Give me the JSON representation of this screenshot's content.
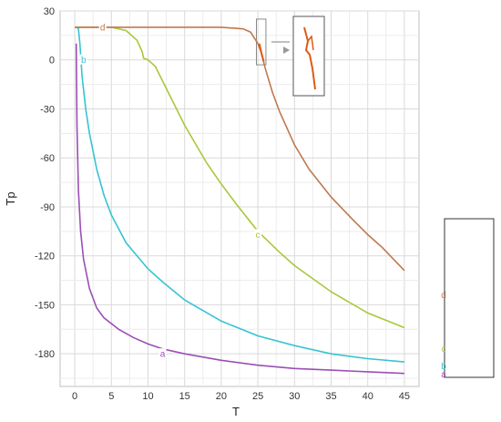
{
  "chart_data": {
    "type": "line",
    "title": "",
    "xlabel": "T",
    "ylabel": "Tp",
    "xlim": [
      -2,
      47
    ],
    "ylim": [
      -200,
      30
    ],
    "xticks": [
      0,
      5,
      10,
      15,
      20,
      25,
      30,
      35,
      40,
      45
    ],
    "yticks": [
      30,
      0,
      -30,
      -60,
      -90,
      -120,
      -150,
      -180
    ],
    "grid": true,
    "series": [
      {
        "name": "a",
        "color": "#9b4fb5",
        "label_at": [
          12,
          -180
        ],
        "points": [
          [
            0.2,
            10
          ],
          [
            0.3,
            -40
          ],
          [
            0.5,
            -80
          ],
          [
            0.8,
            -105
          ],
          [
            1.2,
            -122
          ],
          [
            2,
            -140
          ],
          [
            3,
            -152
          ],
          [
            4,
            -158
          ],
          [
            6,
            -165
          ],
          [
            8,
            -170
          ],
          [
            10,
            -174
          ],
          [
            12,
            -177
          ],
          [
            15,
            -180
          ],
          [
            20,
            -184
          ],
          [
            25,
            -187
          ],
          [
            30,
            -189
          ],
          [
            35,
            -190
          ],
          [
            40,
            -191
          ],
          [
            45,
            -192
          ]
        ]
      },
      {
        "name": "b",
        "color": "#35c4d2",
        "label_at": [
          1.2,
          0
        ],
        "points": [
          [
            0.3,
            20
          ],
          [
            0.5,
            19
          ],
          [
            0.7,
            10
          ],
          [
            1,
            -10
          ],
          [
            1.5,
            -30
          ],
          [
            2,
            -45
          ],
          [
            3,
            -67
          ],
          [
            4,
            -83
          ],
          [
            5,
            -95
          ],
          [
            7,
            -112
          ],
          [
            10,
            -128
          ],
          [
            12,
            -136
          ],
          [
            15,
            -147
          ],
          [
            20,
            -160
          ],
          [
            25,
            -169
          ],
          [
            30,
            -175
          ],
          [
            35,
            -180
          ],
          [
            40,
            -183
          ],
          [
            45,
            -185
          ]
        ]
      },
      {
        "name": "c",
        "color": "#a8c83a",
        "label_at": [
          25,
          -107
        ],
        "points": [
          [
            0,
            20
          ],
          [
            5,
            20
          ],
          [
            7,
            18
          ],
          [
            8.5,
            12
          ],
          [
            9.2,
            5
          ],
          [
            9.4,
            1
          ],
          [
            10,
            0
          ],
          [
            11,
            -4
          ],
          [
            13,
            -22
          ],
          [
            15,
            -40
          ],
          [
            18,
            -63
          ],
          [
            20,
            -76
          ],
          [
            22,
            -88
          ],
          [
            25,
            -105
          ],
          [
            28,
            -118
          ],
          [
            30,
            -126
          ],
          [
            35,
            -142
          ],
          [
            40,
            -155
          ],
          [
            45,
            -164
          ]
        ]
      },
      {
        "name": "d",
        "color": "#c07850",
        "label_at": [
          3.8,
          20
        ],
        "points": [
          [
            0,
            20
          ],
          [
            10,
            20
          ],
          [
            20,
            20
          ],
          [
            23,
            19
          ],
          [
            24,
            17
          ],
          [
            25,
            10
          ],
          [
            25.5,
            4
          ],
          [
            26,
            -5
          ],
          [
            27,
            -20
          ],
          [
            28,
            -32
          ],
          [
            30,
            -52
          ],
          [
            32,
            -67
          ],
          [
            35,
            -84
          ],
          [
            38,
            -98
          ],
          [
            40,
            -107
          ],
          [
            42,
            -115
          ],
          [
            45,
            -129
          ]
        ]
      }
    ],
    "inset_legend": {
      "entries": [
        {
          "label": "d",
          "color": "#c07850"
        },
        {
          "label": "c",
          "color": "#a8c83a"
        },
        {
          "label": "b",
          "color": "#35c4d2"
        },
        {
          "label": "a",
          "color": "#9b4fb5"
        }
      ]
    }
  }
}
